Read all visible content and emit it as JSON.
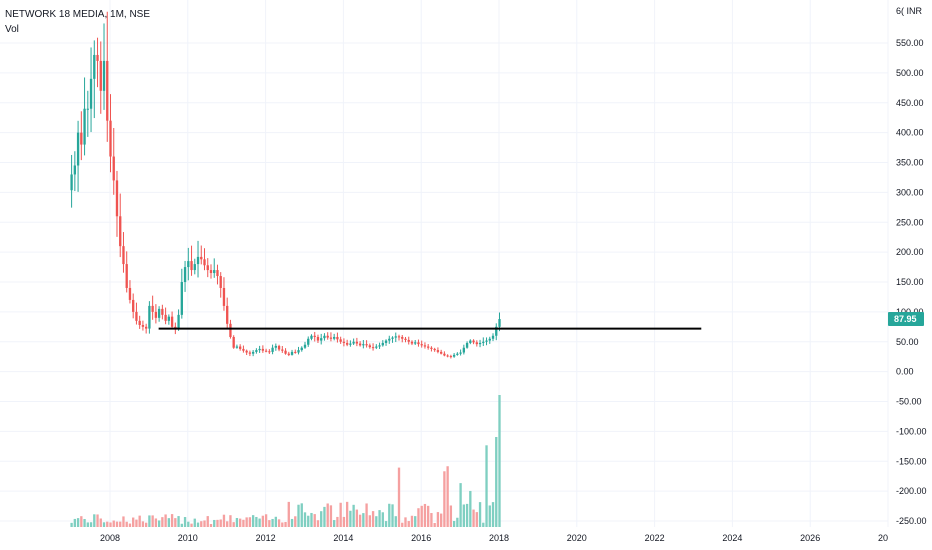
{
  "legend": {
    "symbol_line": "NETWORK 18 MEDIA, 1M, NSE",
    "volume_label": "Vol"
  },
  "currency_label": "6( INR",
  "last_price": "87.95",
  "colors": {
    "up": "#26a69a",
    "down": "#ef5350",
    "up_volume": "#7fcfc1",
    "down_volume": "#f5a0a0",
    "support_line": "#000000",
    "grid": "#f0f3fa",
    "axis_text": "#131722"
  },
  "chart_data": {
    "type": "candlestick",
    "y_axis": {
      "ticks": [
        "550.00",
        "500.00",
        "450.00",
        "400.00",
        "350.00",
        "300.00",
        "250.00",
        "200.00",
        "150.00",
        "100.00",
        "50.00",
        "0.00",
        "-50.00",
        "-100.00",
        "-150.00",
        "-200.00",
        "-250.00"
      ],
      "range": [
        -260,
        610
      ]
    },
    "x_axis": {
      "ticks": [
        "2008",
        "2010",
        "2012",
        "2014",
        "2016",
        "2018",
        "2020",
        "2022",
        "2024",
        "2026",
        "20"
      ],
      "range_years": [
        2007.0,
        2029.4
      ]
    },
    "support_level": 72,
    "support_from_year": 2009.25,
    "support_to_year": 2023.2,
    "monthly_close_start": "2007-01",
    "monthly_close": [
      330,
      345,
      400,
      380,
      440,
      440,
      490,
      530,
      520,
      470,
      520,
      420,
      360,
      320,
      260,
      210,
      180,
      140,
      120,
      100,
      85,
      78,
      75,
      72,
      110,
      100,
      90,
      105,
      95,
      85,
      92,
      75,
      72,
      95,
      150,
      175,
      185,
      170,
      180,
      192,
      188,
      178,
      170,
      165,
      170,
      160,
      140,
      110,
      80,
      58,
      40,
      42,
      38,
      35,
      32,
      30,
      33,
      36,
      38,
      35,
      34,
      33,
      40,
      43,
      37,
      35,
      30,
      28,
      33,
      32,
      36,
      40,
      45,
      55,
      60,
      58,
      52,
      56,
      60,
      57,
      55,
      58,
      54,
      50,
      48,
      45,
      47,
      50,
      47,
      44,
      46,
      44,
      41,
      40,
      42,
      44,
      48,
      52,
      55,
      57,
      59,
      58,
      55,
      53,
      50,
      47,
      49,
      46,
      44,
      42,
      40,
      38,
      36,
      33,
      30,
      27,
      26,
      25,
      28,
      30,
      32,
      40,
      48,
      52,
      49,
      46,
      48,
      50,
      52,
      55,
      60,
      75,
      88
    ]
  }
}
